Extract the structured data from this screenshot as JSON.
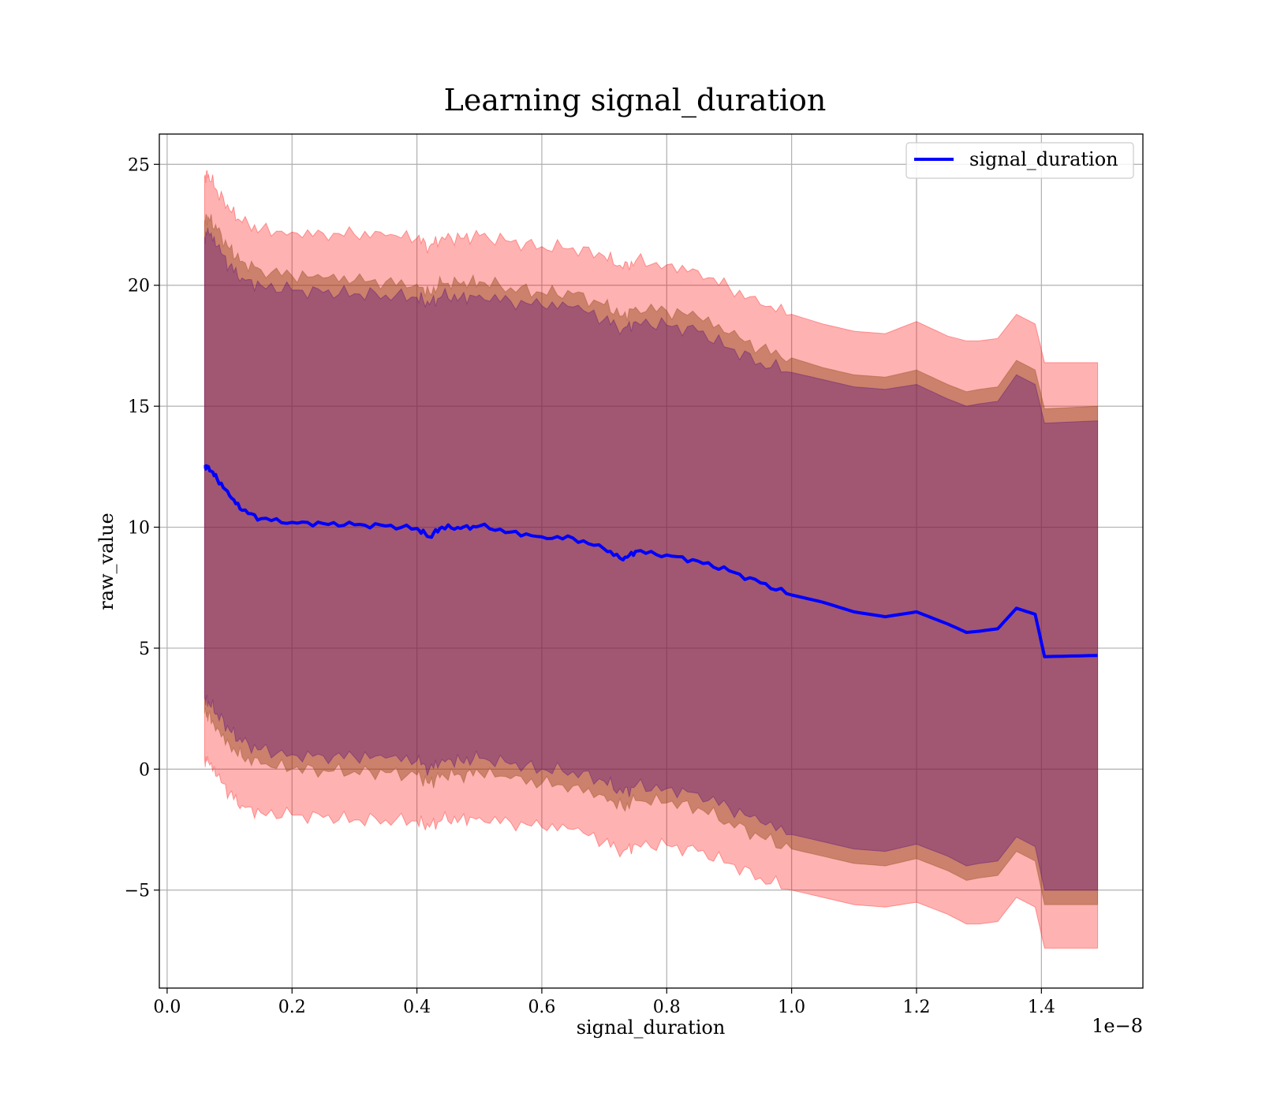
{
  "chart_data": {
    "type": "area",
    "title": "Learning signal_duration",
    "xlabel": "signal_duration",
    "ylabel": "raw_value",
    "x_offset_label": "1e−8",
    "xlim": [
      -0.0125,
      1.5625
    ],
    "ylim": [
      -9.05,
      26.25
    ],
    "x_ticks": [
      0.0,
      0.2,
      0.4,
      0.6,
      0.8,
      1.0,
      1.2,
      1.4
    ],
    "x_tick_labels": [
      "0.0",
      "0.2",
      "0.4",
      "0.6",
      "0.8",
      "1.0",
      "1.2",
      "1.4"
    ],
    "y_ticks": [
      -5,
      0,
      5,
      10,
      15,
      20,
      25
    ],
    "y_tick_labels": [
      "−5",
      "0",
      "5",
      "10",
      "15",
      "20",
      "25"
    ],
    "grid": true,
    "legend": {
      "position": "top-right",
      "entries": [
        "signal_duration"
      ]
    },
    "colors": {
      "line": "#0000ff",
      "band_outer": "#ff0000",
      "band_middle": "#8b4513",
      "band_inner": "#4b0082"
    },
    "x": [
      0.06,
      0.066,
      0.08,
      0.1,
      0.12,
      0.15,
      0.2,
      0.25,
      0.3,
      0.35,
      0.4,
      0.42,
      0.44,
      0.47,
      0.5,
      0.55,
      0.6,
      0.65,
      0.7,
      0.73,
      0.75,
      0.8,
      0.85,
      0.9,
      0.95,
      1.0,
      1.05,
      1.1,
      1.15,
      1.2,
      1.25,
      1.28,
      1.3,
      1.33,
      1.36,
      1.39,
      1.405,
      1.49
    ],
    "series": [
      {
        "name": "signal_duration",
        "values": [
          12.5,
          12.5,
          12.0,
          11.3,
          10.7,
          10.35,
          10.2,
          10.15,
          10.1,
          10.05,
          9.95,
          9.6,
          10.0,
          9.95,
          10.05,
          9.8,
          9.6,
          9.55,
          9.1,
          8.65,
          9.0,
          8.85,
          8.6,
          8.2,
          7.7,
          7.2,
          6.9,
          6.5,
          6.3,
          6.5,
          6.0,
          5.65,
          5.7,
          5.8,
          6.65,
          6.4,
          4.65,
          4.7
        ]
      }
    ],
    "bands": [
      {
        "color": "outer",
        "upper": [
          24.5,
          24.6,
          23.9,
          23.1,
          22.6,
          22.3,
          22.2,
          22.15,
          22.1,
          22.05,
          21.95,
          21.6,
          22.0,
          21.95,
          22.05,
          21.8,
          21.6,
          21.55,
          21.2,
          20.7,
          21.0,
          20.85,
          20.6,
          19.9,
          19.2,
          18.8,
          18.4,
          18.1,
          18.0,
          18.5,
          17.9,
          17.7,
          17.7,
          17.8,
          18.8,
          18.4,
          16.8,
          16.8
        ],
        "lower": [
          0.4,
          0.3,
          -0.3,
          -1.0,
          -1.5,
          -1.8,
          -1.9,
          -2.0,
          -2.1,
          -2.1,
          -2.15,
          -2.4,
          -2.1,
          -2.05,
          -2.0,
          -2.2,
          -2.4,
          -2.5,
          -3.0,
          -3.4,
          -3.1,
          -3.15,
          -3.4,
          -3.9,
          -4.5,
          -5.0,
          -5.3,
          -5.6,
          -5.7,
          -5.5,
          -6.0,
          -6.4,
          -6.4,
          -6.3,
          -5.3,
          -5.7,
          -7.4,
          -7.4
        ]
      },
      {
        "color": "middle",
        "upper": [
          22.7,
          22.8,
          22.3,
          21.5,
          21.0,
          20.65,
          20.4,
          20.3,
          20.2,
          20.15,
          20.05,
          19.7,
          20.1,
          20.05,
          20.15,
          19.9,
          19.7,
          19.65,
          19.2,
          18.75,
          19.1,
          18.95,
          18.7,
          18.0,
          17.4,
          17.0,
          16.6,
          16.3,
          16.2,
          16.5,
          15.9,
          15.6,
          15.7,
          15.8,
          16.9,
          16.5,
          14.9,
          15.0
        ]
      },
      {
        "color": "middle",
        "upper": [
          22.7,
          22.8,
          22.3,
          21.5,
          21.0,
          20.65,
          20.4,
          20.3,
          20.2,
          20.15,
          20.05,
          19.7,
          20.1,
          20.05,
          20.15,
          19.9,
          19.7,
          19.65,
          19.2,
          18.75,
          19.1,
          18.95,
          18.7,
          18.0,
          17.4,
          17.0,
          16.6,
          16.3,
          16.2,
          16.5,
          15.9,
          15.6,
          15.7,
          15.8,
          16.9,
          16.5,
          14.9,
          15.0
        ],
        "lower": [
          2.3,
          2.2,
          1.7,
          1.0,
          0.5,
          0.2,
          0.0,
          -0.05,
          -0.1,
          -0.15,
          -0.25,
          -0.6,
          -0.2,
          -0.25,
          -0.15,
          -0.4,
          -0.6,
          -0.7,
          -1.1,
          -1.6,
          -1.3,
          -1.4,
          -1.6,
          -2.2,
          -2.8,
          -3.3,
          -3.6,
          -3.9,
          -4.0,
          -3.7,
          -4.2,
          -4.6,
          -4.5,
          -4.4,
          -3.4,
          -3.8,
          -5.6,
          -5.6
        ]
      },
      {
        "color": "inner",
        "upper": [
          22.0,
          22.2,
          21.6,
          20.8,
          20.3,
          20.0,
          19.8,
          19.7,
          19.65,
          19.6,
          19.5,
          19.2,
          19.55,
          19.5,
          19.6,
          19.35,
          19.15,
          19.1,
          18.6,
          18.2,
          18.5,
          18.35,
          18.1,
          17.4,
          16.8,
          16.4,
          16.1,
          15.8,
          15.7,
          15.9,
          15.3,
          15.0,
          15.1,
          15.2,
          16.3,
          15.9,
          14.3,
          14.4
        ],
        "lower": [
          2.9,
          2.8,
          2.3,
          1.6,
          1.1,
          0.8,
          0.6,
          0.55,
          0.5,
          0.45,
          0.35,
          0.0,
          0.4,
          0.35,
          0.45,
          0.2,
          0.0,
          -0.1,
          -0.5,
          -1.0,
          -0.7,
          -0.8,
          -1.0,
          -1.6,
          -2.2,
          -2.7,
          -3.0,
          -3.3,
          -3.4,
          -3.1,
          -3.6,
          -4.0,
          -3.9,
          -3.8,
          -2.8,
          -3.2,
          -5.0,
          -5.0
        ]
      }
    ]
  }
}
